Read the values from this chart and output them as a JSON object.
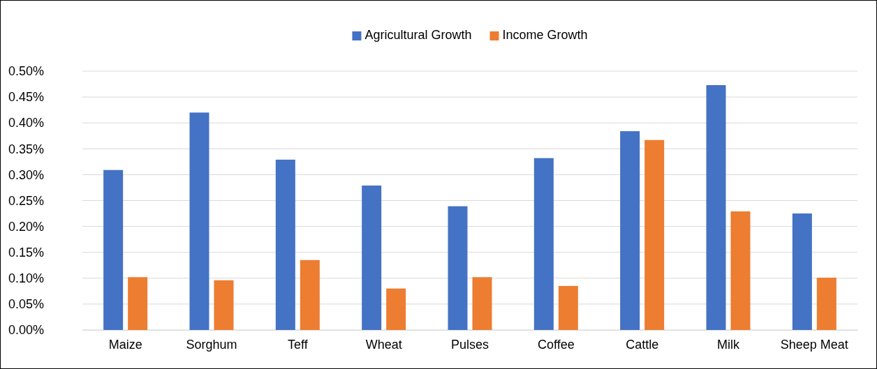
{
  "chart_data": {
    "type": "bar",
    "categories": [
      "Maize",
      "Sorghum",
      "Teff",
      "Wheat",
      "Pulses",
      "Coffee",
      "Cattle",
      "Milk",
      "Sheep Meat"
    ],
    "series": [
      {
        "name": "Agricultural Growth",
        "color": "#4472c4",
        "values": [
          0.309,
          0.42,
          0.329,
          0.279,
          0.239,
          0.332,
          0.384,
          0.473,
          0.225
        ]
      },
      {
        "name": "Income Growth",
        "color": "#ed7d31",
        "values": [
          0.102,
          0.096,
          0.135,
          0.08,
          0.102,
          0.085,
          0.367,
          0.229,
          0.101
        ]
      }
    ],
    "ylim": [
      0,
      0.5
    ],
    "yticks": [
      {
        "value": 0,
        "label": "0.00%"
      },
      {
        "value": 0.05,
        "label": "0.05%"
      },
      {
        "value": 0.1,
        "label": "0.10%"
      },
      {
        "value": 0.15,
        "label": "0.15%"
      },
      {
        "value": 0.2,
        "label": "0.20%"
      },
      {
        "value": 0.25,
        "label": "0.25%"
      },
      {
        "value": 0.3,
        "label": "0.30%"
      },
      {
        "value": 0.35,
        "label": "0.35%"
      },
      {
        "value": 0.4,
        "label": "0.40%"
      },
      {
        "value": 0.45,
        "label": "0.45%"
      },
      {
        "value": 0.5,
        "label": "0.50%"
      }
    ],
    "grid": "y",
    "legend": "top"
  }
}
